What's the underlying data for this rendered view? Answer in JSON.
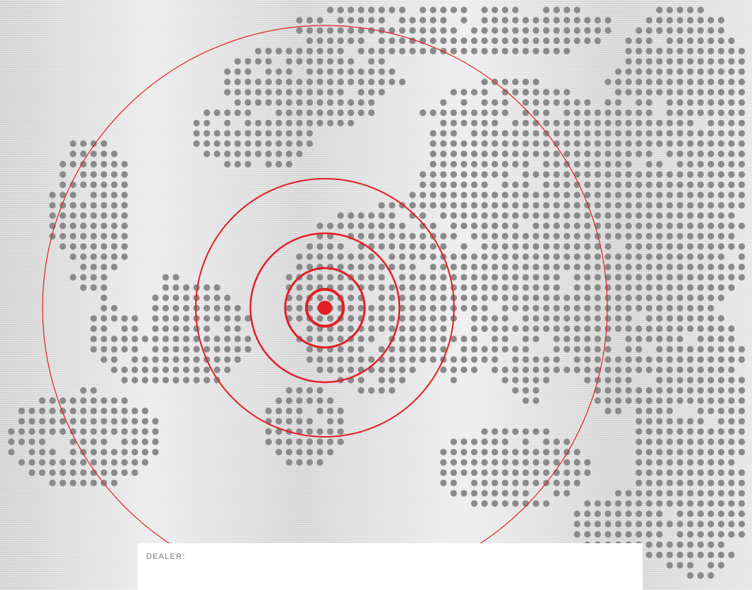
{
  "dealer": {
    "label": "DEALER:",
    "value": ""
  },
  "map": {
    "type": "dot-matrix-map",
    "region": "Europe",
    "dot_color": "#8a8a8a",
    "marker_color": "#e41e26",
    "ring_count": 5,
    "marker_icon": "location-target-icon"
  },
  "colors": {
    "background": "#dcdcdc",
    "accent": "#e41e26",
    "panel": "#ffffff"
  }
}
